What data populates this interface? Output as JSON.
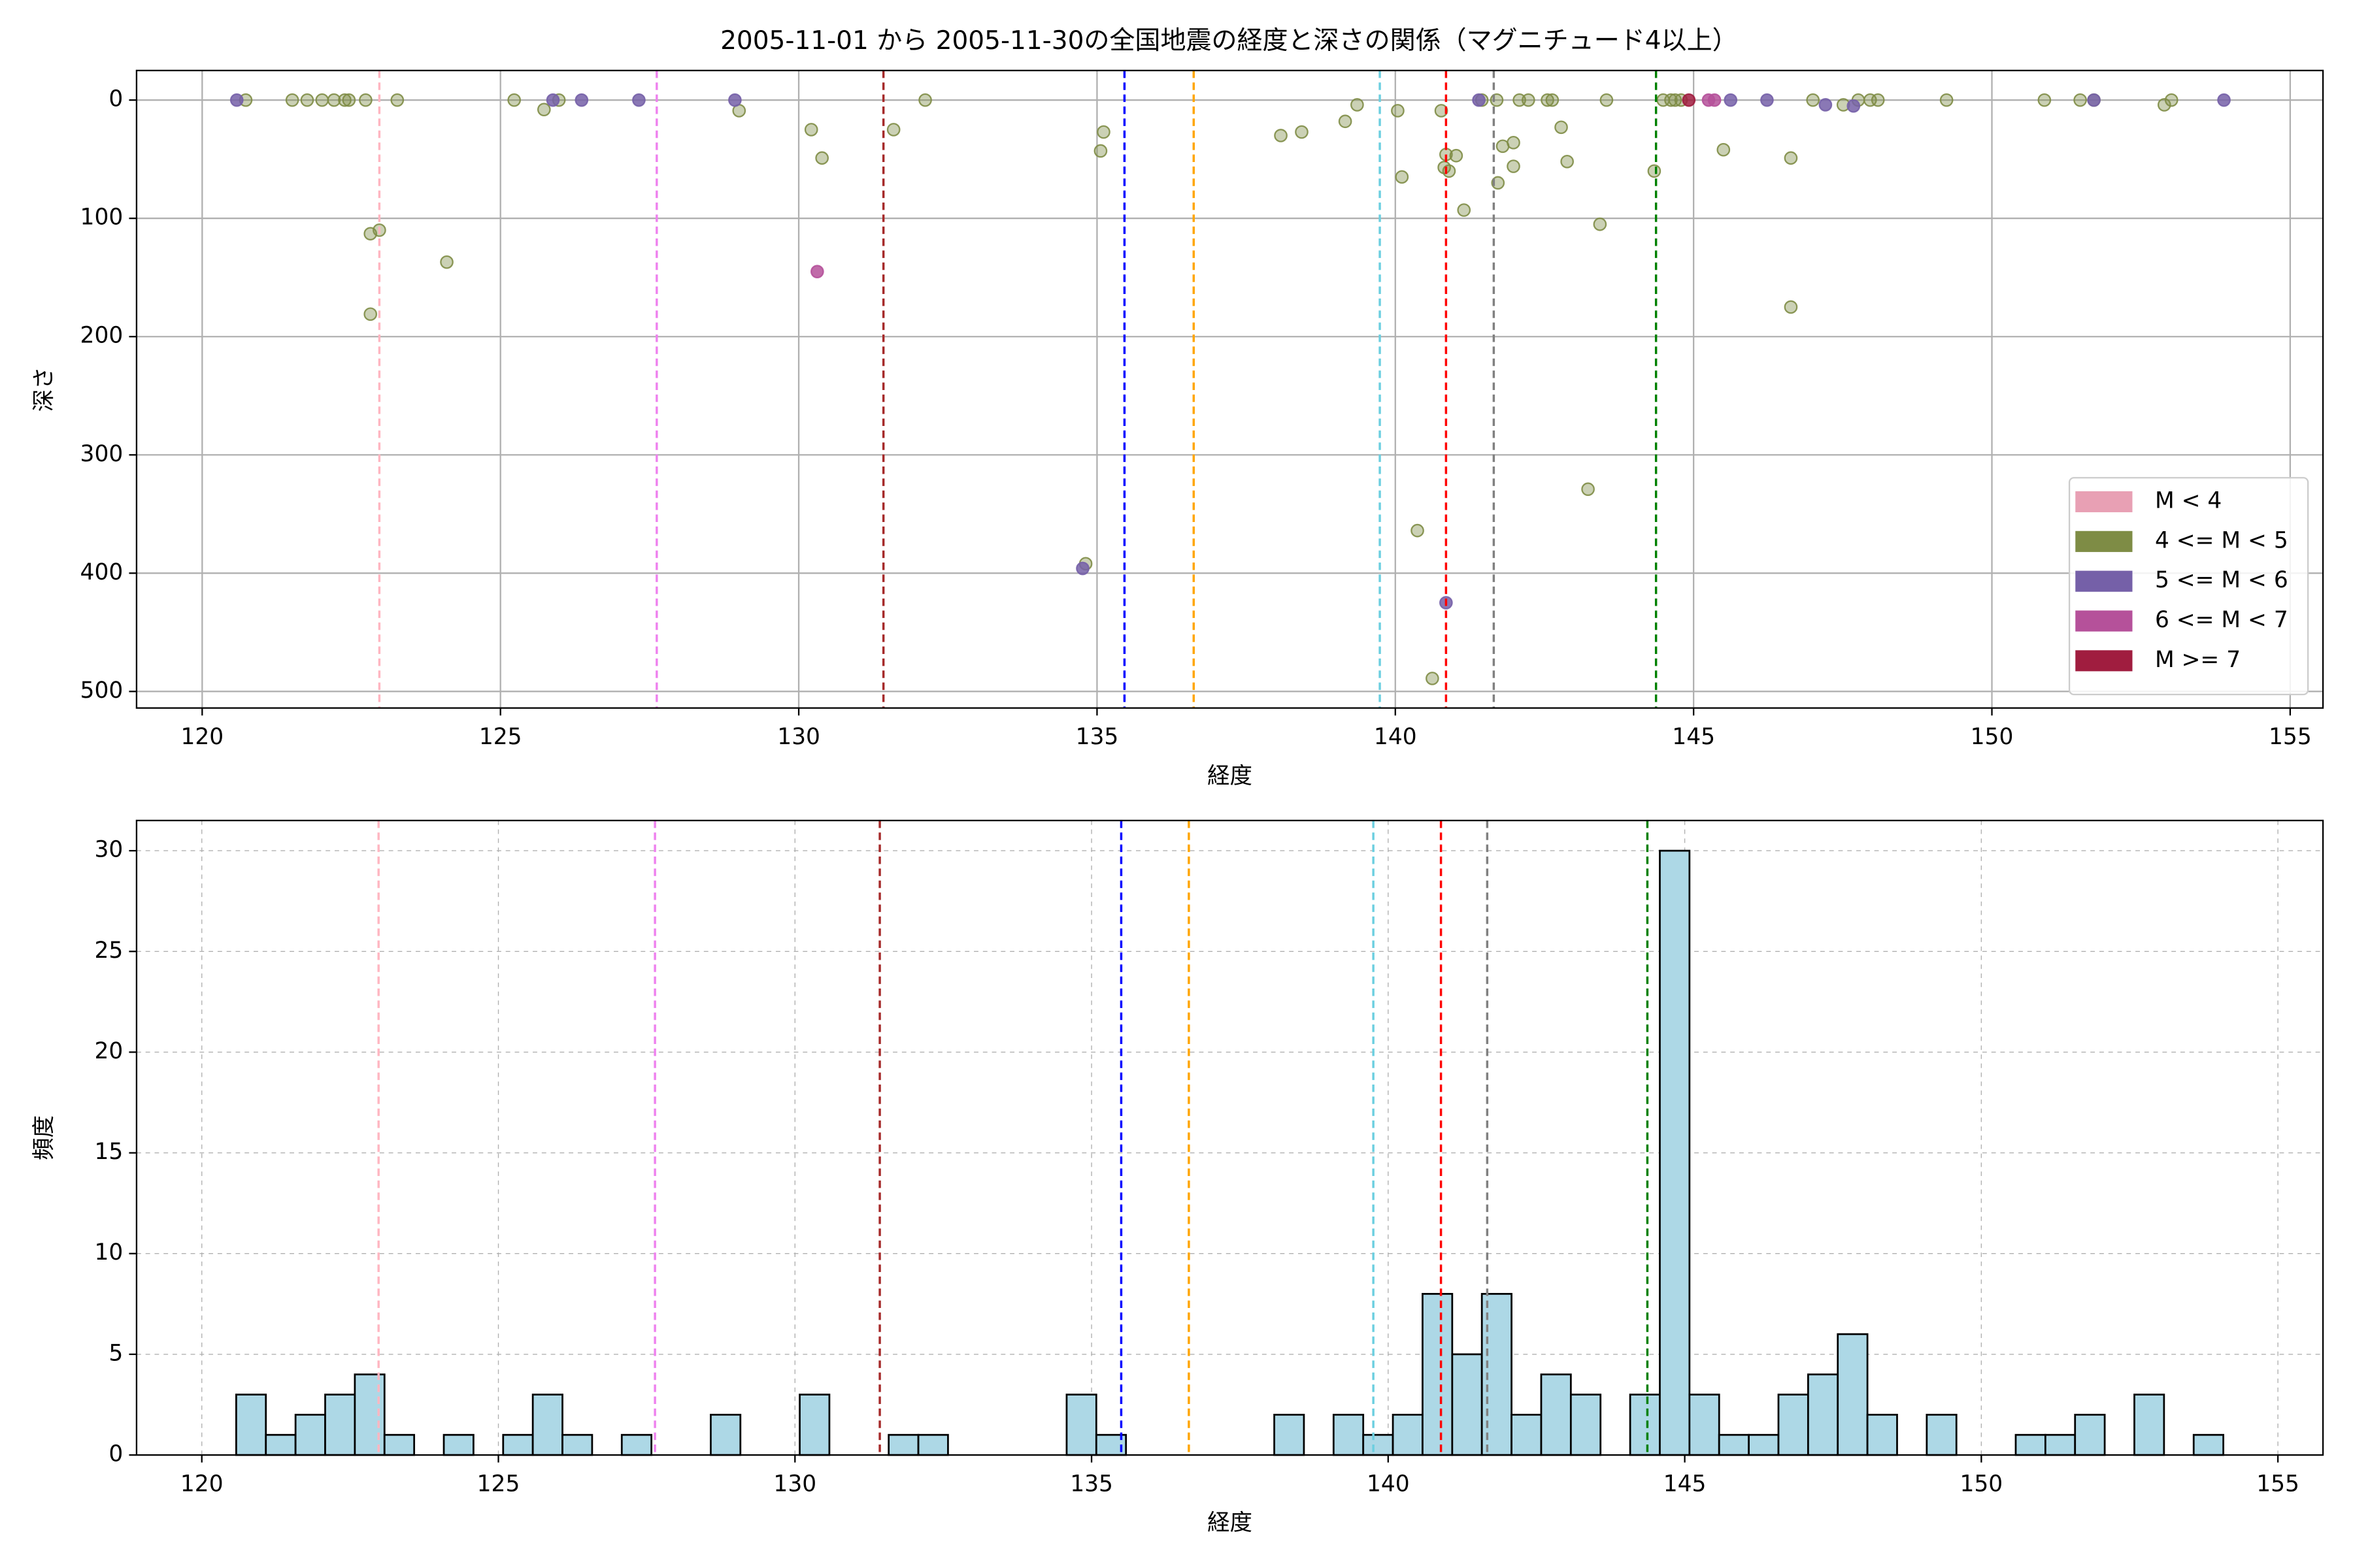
{
  "chart_data": [
    {
      "type": "scatter",
      "title": "2005-11-01 から 2005-11-30の全国地震の経度と深さの関係（マグニチュード4以上）",
      "xlabel": "経度",
      "ylabel": "深さ",
      "xlim": [
        118.9,
        155.55
      ],
      "ylim": [
        -25,
        514
      ],
      "y_inverted": true,
      "xticks": [
        120,
        125,
        130,
        135,
        140,
        145,
        150,
        155
      ],
      "yticks": [
        0,
        100,
        200,
        300,
        400,
        500
      ],
      "grid": true,
      "grid_style": "solid",
      "legend": "lower right",
      "reference_lines": [
        {
          "x": 122.97,
          "color": "#ffb6c1"
        },
        {
          "x": 127.62,
          "color": "#ee82ee"
        },
        {
          "x": 131.42,
          "color": "#a52a2a"
        },
        {
          "x": 135.46,
          "color": "#0000ff"
        },
        {
          "x": 136.62,
          "color": "#ffa500"
        },
        {
          "x": 139.74,
          "color": "#6ccfe0"
        },
        {
          "x": 140.85,
          "color": "#ff0000"
        },
        {
          "x": 141.65,
          "color": "#808080"
        },
        {
          "x": 144.37,
          "color": "#008000"
        }
      ],
      "series": [
        {
          "name": "M < 4",
          "color": "#e8a0b4",
          "x": [],
          "y": []
        },
        {
          "name": "4 <= M < 5",
          "color": "#7e8c45",
          "x": [
            120.73,
            121.51,
            121.76,
            122.01,
            122.21,
            122.39,
            122.46,
            122.74,
            123.27,
            122.82,
            122.97,
            122.82,
            124.1,
            125.23,
            125.73,
            125.98,
            129.0,
            130.21,
            130.39,
            131.59,
            132.12,
            135.11,
            135.06,
            134.81,
            138.08,
            138.43,
            139.16,
            139.36,
            140.04,
            140.11,
            140.37,
            140.62,
            140.77,
            140.85,
            140.82,
            140.9,
            141.02,
            141.15,
            141.45,
            141.7,
            141.72,
            141.8,
            141.98,
            141.98,
            142.08,
            142.23,
            142.55,
            142.63,
            142.78,
            142.88,
            143.23,
            143.43,
            143.54,
            144.34,
            144.49,
            144.62,
            144.69,
            144.79,
            145.5,
            146.63,
            146.63,
            147.0,
            147.51,
            147.76,
            147.96,
            148.09,
            149.24,
            150.88,
            151.48,
            151.71,
            152.89,
            153.01
          ],
          "y": [
            0,
            0,
            0,
            0,
            0,
            0,
            0,
            0,
            0,
            113,
            110,
            181,
            137,
            0,
            8,
            0,
            9,
            25,
            49,
            25,
            0,
            27,
            43,
            392,
            30,
            27,
            18,
            4,
            9,
            65,
            364,
            489,
            9,
            46,
            57,
            60,
            47,
            93,
            0,
            0,
            70,
            39,
            36,
            56,
            0,
            0,
            0,
            0,
            23,
            52,
            329,
            105,
            0,
            60,
            0,
            0,
            0,
            0,
            42,
            175,
            49,
            0,
            4,
            0,
            0,
            0,
            0,
            0,
            0,
            0,
            4,
            0
          ]
        },
        {
          "name": "5 <= M < 6",
          "color": "#7560a8",
          "x": [
            120.58,
            125.88,
            126.36,
            127.32,
            128.93,
            134.76,
            141.4,
            145.62,
            146.23,
            147.21,
            147.68,
            151.71,
            153.89,
            140.85
          ],
          "y": [
            0,
            0,
            0,
            0,
            0,
            396,
            0,
            0,
            0,
            4,
            5,
            0,
            0,
            425
          ]
        },
        {
          "name": "6 <= M < 7",
          "color": "#b5519a",
          "x": [
            130.31,
            145.25,
            145.35
          ],
          "y": [
            145,
            0,
            0
          ]
        },
        {
          "name": "M >= 7",
          "color": "#a01d3f",
          "x": [
            144.92
          ],
          "y": [
            0
          ]
        }
      ]
    },
    {
      "type": "histogram",
      "xlabel": "経度",
      "ylabel": "頻度",
      "xlim": [
        118.9,
        155.76
      ],
      "ylim": [
        0,
        31.5
      ],
      "xticks": [
        120,
        125,
        130,
        135,
        140,
        145,
        150,
        155
      ],
      "yticks": [
        0,
        5,
        10,
        15,
        20,
        25,
        30
      ],
      "grid": true,
      "grid_style": "dashed",
      "color": "#add8e6",
      "edgecolor": "#000000",
      "reference_lines": [
        {
          "x": 122.98,
          "color": "#ffb6c1"
        },
        {
          "x": 127.64,
          "color": "#ee82ee"
        },
        {
          "x": 131.43,
          "color": "#a52a2a"
        },
        {
          "x": 135.5,
          "color": "#0000ff"
        },
        {
          "x": 136.64,
          "color": "#ffa500"
        },
        {
          "x": 139.75,
          "color": "#6ccfe0"
        },
        {
          "x": 140.89,
          "color": "#ff0000"
        },
        {
          "x": 141.67,
          "color": "#808080"
        },
        {
          "x": 144.37,
          "color": "#008000"
        }
      ],
      "bins": [
        120.58,
        121.08,
        121.58,
        122.08,
        122.58,
        123.08,
        123.58,
        124.08,
        124.58,
        125.08,
        125.58,
        126.08,
        126.58,
        127.08,
        127.58,
        128.08,
        128.58,
        129.08,
        129.58,
        130.08,
        130.58,
        131.08,
        131.58,
        132.08,
        132.58,
        133.08,
        133.58,
        134.08,
        134.58,
        135.08,
        135.58,
        136.08,
        136.58,
        137.08,
        137.58,
        138.08,
        138.58,
        139.08,
        139.58,
        140.08,
        140.58,
        141.08,
        141.58,
        142.08,
        142.58,
        143.08,
        143.58,
        144.08,
        144.58,
        145.08,
        145.58,
        146.08,
        146.58,
        147.08,
        147.58,
        148.08,
        148.58,
        149.08,
        149.58,
        150.08,
        150.58,
        151.08,
        151.58,
        152.08,
        152.58,
        153.08,
        153.58,
        154.08
      ],
      "values": [
        3,
        1,
        2,
        3,
        4,
        1,
        0,
        1,
        0,
        1,
        3,
        1,
        0,
        1,
        0,
        0,
        2,
        0,
        0,
        3,
        0,
        0,
        1,
        1,
        0,
        0,
        0,
        0,
        3,
        1,
        0,
        0,
        0,
        0,
        0,
        2,
        0,
        2,
        1,
        2,
        8,
        5,
        8,
        2,
        4,
        3,
        0,
        3,
        30,
        3,
        1,
        1,
        3,
        4,
        6,
        2,
        0,
        2,
        0,
        0,
        1,
        1,
        2,
        0,
        3,
        0,
        1
      ]
    }
  ]
}
